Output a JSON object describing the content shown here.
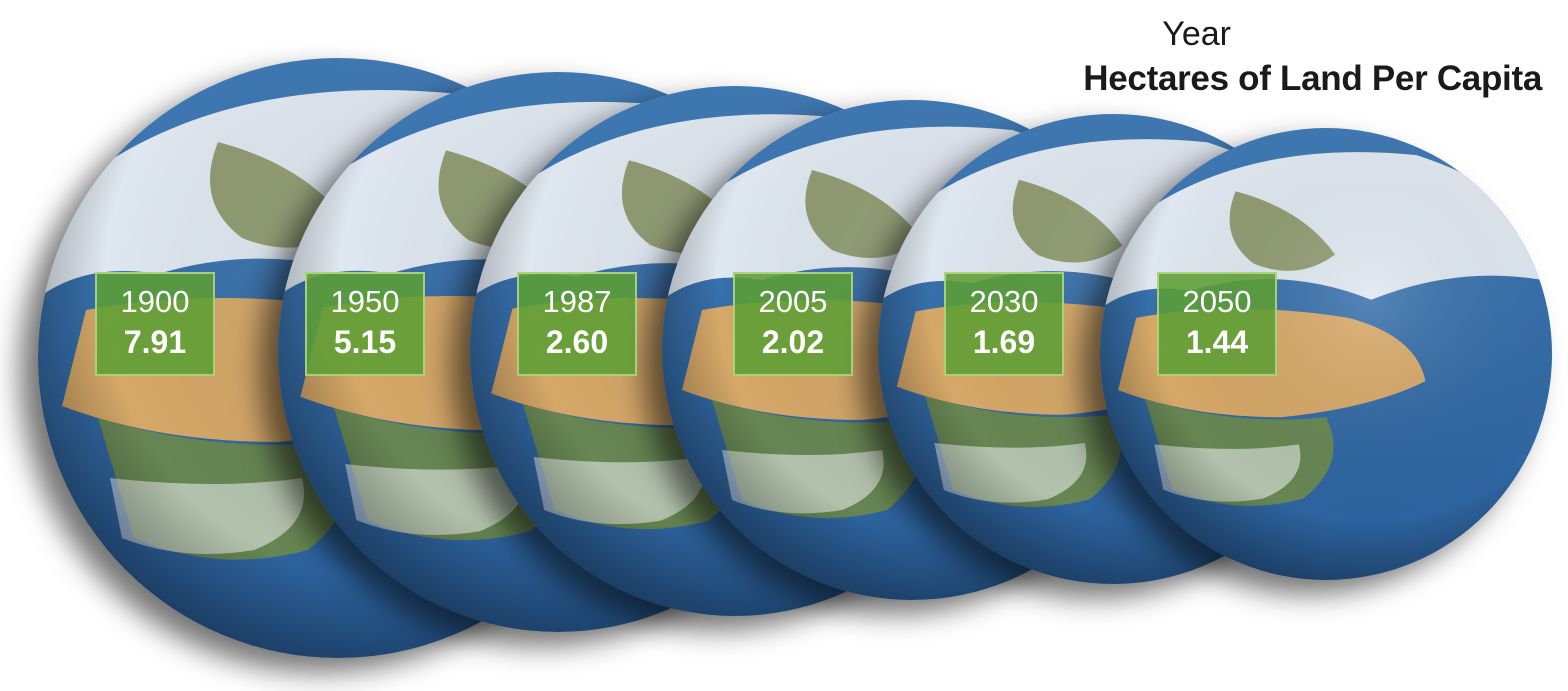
{
  "legend": {
    "year_label": "Year",
    "metric_label": "Hectares of Land Per Capita"
  },
  "chart_data": {
    "type": "table",
    "title": "",
    "columns": [
      "Year",
      "Hectares of Land Per Capita"
    ],
    "x": [
      "1900",
      "1950",
      "1987",
      "2005",
      "2030",
      "2050"
    ],
    "series": [
      {
        "name": "Hectares of Land Per Capita",
        "values": [
          7.91,
          5.15,
          2.6,
          2.02,
          1.69,
          1.44
        ]
      }
    ],
    "labels": [
      {
        "year": "1900",
        "value": "7.91"
      },
      {
        "year": "1950",
        "value": "5.15"
      },
      {
        "year": "1987",
        "value": "2.60"
      },
      {
        "year": "2005",
        "value": "2.02"
      },
      {
        "year": "2030",
        "value": "1.69"
      },
      {
        "year": "2050",
        "value": "1.44"
      }
    ]
  },
  "colors": {
    "label_box": "#5c9e34",
    "ocean": "#2a5f9a",
    "desert": "#d6a868",
    "clouds": "#f2f4f7"
  }
}
